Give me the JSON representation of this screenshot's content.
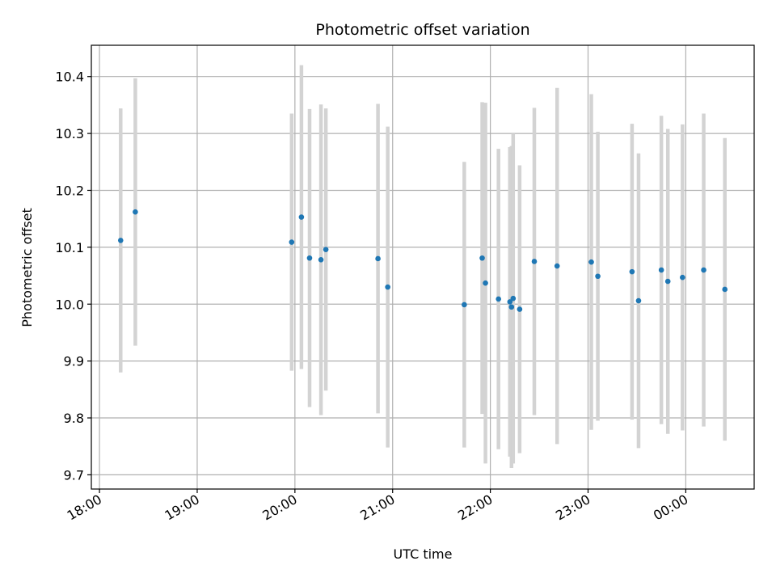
{
  "chart_data": {
    "type": "scatter",
    "title": "Photometric offset variation",
    "xlabel": "UTC time",
    "ylabel": "Photometric offset",
    "grid": true,
    "x_domain": [
      "17:55",
      "00:42"
    ],
    "ylim": [
      9.675,
      10.455
    ],
    "x_ticks": [
      "18:00",
      "19:00",
      "20:00",
      "21:00",
      "22:00",
      "23:00",
      "00:00"
    ],
    "y_ticks": [
      "9.7",
      "9.8",
      "9.9",
      "10.0",
      "10.1",
      "10.2",
      "10.3",
      "10.4"
    ],
    "point_color": "#1f77b4",
    "errorbar_color": "#d3d3d3",
    "points": [
      {
        "x": "18:13",
        "y": 10.112,
        "err": 0.232
      },
      {
        "x": "18:22",
        "y": 10.162,
        "err": 0.235
      },
      {
        "x": "19:58",
        "y": 10.109,
        "err": 0.226
      },
      {
        "x": "20:04",
        "y": 10.153,
        "err": 0.267
      },
      {
        "x": "20:09",
        "y": 10.081,
        "err": 0.262
      },
      {
        "x": "20:16",
        "y": 10.078,
        "err": 0.273
      },
      {
        "x": "20:19",
        "y": 10.096,
        "err": 0.248
      },
      {
        "x": "20:51",
        "y": 10.08,
        "err": 0.272
      },
      {
        "x": "20:57",
        "y": 10.03,
        "err": 0.282
      },
      {
        "x": "21:44",
        "y": 9.999,
        "err": 0.251
      },
      {
        "x": "21:55",
        "y": 10.081,
        "err": 0.274
      },
      {
        "x": "21:57",
        "y": 10.037,
        "err": 0.317
      },
      {
        "x": "22:05",
        "y": 10.009,
        "err": 0.264
      },
      {
        "x": "22:12",
        "y": 10.004,
        "err": 0.272
      },
      {
        "x": "22:13",
        "y": 9.995,
        "err": 0.283
      },
      {
        "x": "22:14",
        "y": 10.01,
        "err": 0.29
      },
      {
        "x": "22:18",
        "y": 9.991,
        "err": 0.253
      },
      {
        "x": "22:27",
        "y": 10.075,
        "err": 0.27
      },
      {
        "x": "22:41",
        "y": 10.067,
        "err": 0.313
      },
      {
        "x": "23:02",
        "y": 10.074,
        "err": 0.295
      },
      {
        "x": "23:06",
        "y": 10.049,
        "err": 0.254
      },
      {
        "x": "23:27",
        "y": 10.057,
        "err": 0.26
      },
      {
        "x": "23:31",
        "y": 10.006,
        "err": 0.259
      },
      {
        "x": "23:45",
        "y": 10.06,
        "err": 0.271
      },
      {
        "x": "23:49",
        "y": 10.04,
        "err": 0.268
      },
      {
        "x": "23:58",
        "y": 10.047,
        "err": 0.269
      },
      {
        "x": "00:11",
        "y": 10.06,
        "err": 0.275
      },
      {
        "x": "00:24",
        "y": 10.026,
        "err": 0.266
      }
    ]
  }
}
